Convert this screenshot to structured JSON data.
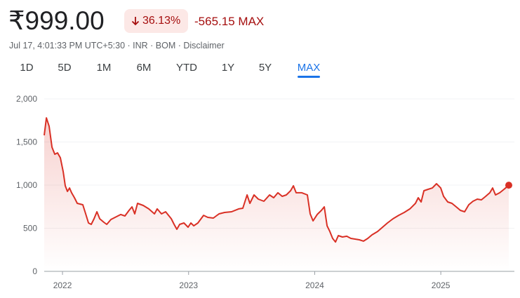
{
  "header": {
    "price": "₹999.00",
    "change_percent": "36.13%",
    "change_value": "-565.15",
    "period": "MAX",
    "meta": "Jul 17, 4:01:33 PM UTC+5:30 · INR · BOM ·",
    "disclaimer": "Disclaimer"
  },
  "tabs": [
    "1D",
    "5D",
    "1M",
    "6M",
    "YTD",
    "1Y",
    "5Y",
    "MAX"
  ],
  "chart_data": {
    "type": "line",
    "color": "#d93025",
    "grid": true,
    "xlim": [
      2021.855,
      2025.539
    ],
    "xticks": [
      2022,
      2023,
      2024,
      2025
    ],
    "ylim": [
      0,
      2000
    ],
    "yticks": [
      {
        "value": 2000,
        "label": "2,000"
      },
      {
        "value": 1500,
        "label": "1,500"
      },
      {
        "value": 1000,
        "label": "1,000"
      },
      500,
      0
    ],
    "x": [
      2021.855,
      2021.872,
      2021.894,
      2021.917,
      2021.939,
      2021.961,
      2021.983,
      2022.006,
      2022.022,
      2022.039,
      2022.056,
      2022.072,
      2022.095,
      2022.117,
      2022.161,
      2022.184,
      2022.206,
      2022.228,
      2022.25,
      2022.273,
      2022.295,
      2022.328,
      2022.351,
      2022.384,
      2022.417,
      2022.462,
      2022.495,
      2022.528,
      2022.551,
      2022.573,
      2022.595,
      2022.64,
      2022.684,
      2022.729,
      2022.751,
      2022.785,
      2022.818,
      2022.863,
      2022.885,
      2022.907,
      2022.929,
      2022.963,
      2022.996,
      2023.018,
      2023.041,
      2023.074,
      2023.119,
      2023.152,
      2023.196,
      2023.241,
      2023.285,
      2023.341,
      2023.397,
      2023.43,
      2023.464,
      2023.486,
      2023.519,
      2023.553,
      2023.597,
      2023.642,
      2023.675,
      2023.708,
      2023.742,
      2023.775,
      2023.809,
      2023.831,
      2023.853,
      2023.898,
      2023.942,
      2023.964,
      2023.987,
      2024.02,
      2024.053,
      2024.076,
      2024.098,
      2024.12,
      2024.142,
      2024.165,
      2024.187,
      2024.22,
      2024.254,
      2024.287,
      2024.321,
      2024.354,
      2024.387,
      2024.421,
      2024.454,
      2024.499,
      2024.532,
      2024.577,
      2024.621,
      2024.666,
      2024.71,
      2024.755,
      2024.799,
      2024.821,
      2024.844,
      2024.866,
      2024.899,
      2024.933,
      2024.966,
      2024.999,
      2025.022,
      2025.055,
      2025.088,
      2025.122,
      2025.155,
      2025.189,
      2025.222,
      2025.255,
      2025.289,
      2025.322,
      2025.356,
      2025.389,
      2025.411,
      2025.434,
      2025.467,
      2025.501,
      2025.539
    ],
    "values": [
      1577,
      1780,
      1683,
      1439,
      1358,
      1374,
      1317,
      1154,
      992,
      927,
      967,
      911,
      854,
      789,
      772,
      667,
      561,
      545,
      610,
      691,
      610,
      569,
      545,
      602,
      626,
      659,
      642,
      707,
      748,
      667,
      789,
      764,
      724,
      667,
      724,
      667,
      691,
      610,
      545,
      488,
      545,
      561,
      512,
      561,
      528,
      561,
      650,
      626,
      618,
      667,
      683,
      691,
      724,
      732,
      886,
      789,
      886,
      837,
      813,
      886,
      854,
      911,
      870,
      886,
      935,
      992,
      911,
      911,
      886,
      667,
      585,
      659,
      707,
      748,
      528,
      463,
      382,
      341,
      415,
      398,
      407,
      382,
      374,
      366,
      350,
      382,
      423,
      463,
      504,
      561,
      610,
      650,
      683,
      724,
      789,
      854,
      805,
      935,
      951,
      967,
      1016,
      967,
      870,
      805,
      789,
      748,
      707,
      691,
      772,
      813,
      837,
      829,
      870,
      911,
      967,
      886,
      911,
      951,
      999
    ]
  }
}
